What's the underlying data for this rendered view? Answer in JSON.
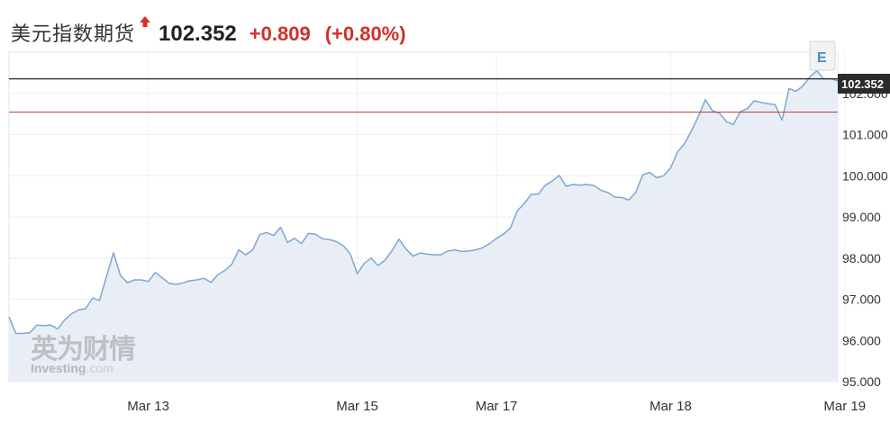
{
  "header": {
    "title": "美元指数期货",
    "price": "102.352",
    "change": "+0.809",
    "change_pct": "(+0.80%)"
  },
  "watermark": {
    "cn": "英为财情",
    "en": "Investing",
    "suffix": ".com"
  },
  "event_marker": "E",
  "colors": {
    "line": "#7ea6d3",
    "fill": "#e9eef6",
    "up": "#d0302b",
    "current_line": "#222222",
    "prev_close_line": "#c0392b"
  },
  "chart_data": {
    "type": "area",
    "title": "",
    "xlabel": "",
    "ylabel": "",
    "ylim": [
      95.0,
      103.0
    ],
    "y_ticks": [
      "95.000",
      "96.000",
      "97.000",
      "98.000",
      "99.000",
      "100.000",
      "101.000",
      "102.000"
    ],
    "x_ticks": [
      "Mar 13",
      "Mar 15",
      "Mar 17",
      "Mar 18",
      "Mar 19"
    ],
    "x_tick_index": [
      20,
      50,
      70,
      95,
      120
    ],
    "current_price": 102.352,
    "current_price_label": "102.352",
    "prev_close": 101.543,
    "grid": true,
    "values": [
      96.57,
      96.17,
      96.17,
      96.19,
      96.37,
      96.36,
      96.37,
      96.28,
      96.5,
      96.65,
      96.74,
      96.77,
      97.03,
      96.97,
      97.55,
      98.13,
      97.58,
      97.4,
      97.47,
      97.47,
      97.43,
      97.65,
      97.52,
      97.39,
      97.36,
      97.4,
      97.45,
      97.47,
      97.51,
      97.41,
      97.6,
      97.7,
      97.85,
      98.2,
      98.08,
      98.2,
      98.57,
      98.62,
      98.55,
      98.75,
      98.38,
      98.48,
      98.35,
      98.6,
      98.58,
      98.47,
      98.45,
      98.4,
      98.3,
      98.1,
      97.62,
      97.87,
      98.0,
      97.82,
      97.95,
      98.18,
      98.46,
      98.22,
      98.05,
      98.12,
      98.1,
      98.08,
      98.08,
      98.17,
      98.2,
      98.16,
      98.17,
      98.2,
      98.25,
      98.35,
      98.48,
      98.58,
      98.73,
      99.15,
      99.33,
      99.55,
      99.55,
      99.77,
      99.87,
      100.01,
      99.74,
      99.79,
      99.77,
      99.79,
      99.76,
      99.65,
      99.59,
      99.48,
      99.47,
      99.41,
      99.6,
      100.02,
      100.08,
      99.95,
      100.0,
      100.19,
      100.58,
      100.78,
      101.09,
      101.45,
      101.85,
      101.58,
      101.52,
      101.32,
      101.24,
      101.55,
      101.63,
      101.82,
      101.78,
      101.75,
      101.73,
      101.35,
      102.12,
      102.05,
      102.18,
      102.4,
      102.55,
      102.35,
      102.36,
      102.3
    ]
  }
}
